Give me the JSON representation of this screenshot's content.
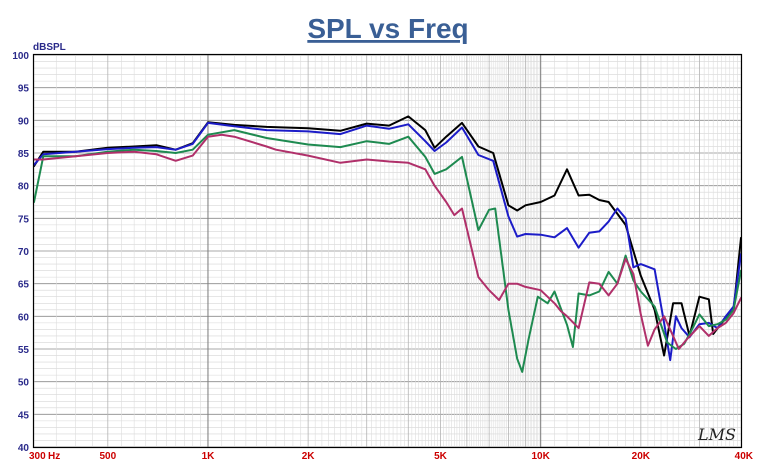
{
  "title": "SPL vs Freq",
  "y_unit_label": "dBSPL",
  "x_unit_label": "Hz",
  "logo_text": "LMS",
  "chart_data": {
    "type": "line",
    "title": "SPL vs Freq",
    "ylabel": "dBSPL",
    "xscale": "log",
    "xlim": [
      300,
      40000
    ],
    "ylim": [
      40,
      100
    ],
    "grid": true,
    "x_tick_labels": [
      {
        "value": 300,
        "label": "300"
      },
      {
        "value": 500,
        "label": "500"
      },
      {
        "value": 1000,
        "label": "1K"
      },
      {
        "value": 2000,
        "label": "2K"
      },
      {
        "value": 5000,
        "label": "5K"
      },
      {
        "value": 10000,
        "label": "10K"
      },
      {
        "value": 20000,
        "label": "20K"
      },
      {
        "value": 40000,
        "label": "40K"
      }
    ],
    "y_ticks": [
      40,
      45,
      50,
      55,
      60,
      65,
      70,
      75,
      80,
      85,
      90,
      95,
      100
    ],
    "series": [
      {
        "color": "#000000",
        "points": [
          [
            300,
            83
          ],
          [
            320,
            85.2
          ],
          [
            400,
            85.2
          ],
          [
            500,
            85.8
          ],
          [
            600,
            86
          ],
          [
            700,
            86.2
          ],
          [
            800,
            85.5
          ],
          [
            900,
            86.5
          ],
          [
            1000,
            89.7
          ],
          [
            1200,
            89.3
          ],
          [
            1500,
            89
          ],
          [
            2000,
            88.8
          ],
          [
            2500,
            88.4
          ],
          [
            3000,
            89.5
          ],
          [
            3500,
            89.2
          ],
          [
            4000,
            90.6
          ],
          [
            4500,
            88.5
          ],
          [
            4800,
            85.8
          ],
          [
            5200,
            87.5
          ],
          [
            5800,
            89.6
          ],
          [
            6500,
            86
          ],
          [
            7200,
            85
          ],
          [
            8000,
            77
          ],
          [
            8500,
            76.2
          ],
          [
            9000,
            77
          ],
          [
            10000,
            77.5
          ],
          [
            11000,
            78.5
          ],
          [
            12000,
            82.5
          ],
          [
            13000,
            78.5
          ],
          [
            14000,
            78.6
          ],
          [
            15000,
            77.8
          ],
          [
            16000,
            77.5
          ],
          [
            18000,
            74
          ],
          [
            20000,
            66.2
          ],
          [
            22000,
            61
          ],
          [
            23500,
            54
          ],
          [
            25000,
            62
          ],
          [
            26500,
            62
          ],
          [
            28000,
            57
          ],
          [
            30000,
            63
          ],
          [
            32000,
            62.6
          ],
          [
            33000,
            57.3
          ],
          [
            35000,
            59
          ],
          [
            38000,
            61
          ],
          [
            40000,
            72
          ]
        ]
      },
      {
        "color": "#1c1cc8",
        "points": [
          [
            300,
            83.2
          ],
          [
            320,
            84.8
          ],
          [
            400,
            85.2
          ],
          [
            500,
            85.6
          ],
          [
            600,
            85.8
          ],
          [
            700,
            85.9
          ],
          [
            800,
            85.5
          ],
          [
            900,
            86.4
          ],
          [
            1000,
            89.6
          ],
          [
            1200,
            89.1
          ],
          [
            1500,
            88.5
          ],
          [
            2000,
            88.3
          ],
          [
            2500,
            87.9
          ],
          [
            3000,
            89.2
          ],
          [
            3500,
            88.7
          ],
          [
            4000,
            89.4
          ],
          [
            4500,
            86.8
          ],
          [
            4800,
            85.3
          ],
          [
            5200,
            86.6
          ],
          [
            5800,
            88.9
          ],
          [
            6500,
            84.7
          ],
          [
            7200,
            83.8
          ],
          [
            8000,
            75.3
          ],
          [
            8500,
            72.2
          ],
          [
            9000,
            72.6
          ],
          [
            10000,
            72.5
          ],
          [
            11000,
            72.1
          ],
          [
            12000,
            73.5
          ],
          [
            13000,
            70.5
          ],
          [
            14000,
            72.8
          ],
          [
            15000,
            73
          ],
          [
            16000,
            74.5
          ],
          [
            17000,
            76.5
          ],
          [
            18000,
            75
          ],
          [
            19000,
            67.5
          ],
          [
            20000,
            68
          ],
          [
            22000,
            67.2
          ],
          [
            23500,
            59
          ],
          [
            24500,
            53.3
          ],
          [
            25500,
            60
          ],
          [
            26500,
            58.2
          ],
          [
            28000,
            56.8
          ],
          [
            30000,
            58.8
          ],
          [
            32000,
            59
          ],
          [
            34000,
            58.2
          ],
          [
            36000,
            60
          ],
          [
            38000,
            61.5
          ],
          [
            40000,
            69.5
          ]
        ]
      },
      {
        "color": "#1e8a50",
        "points": [
          [
            300,
            77.5
          ],
          [
            320,
            84.5
          ],
          [
            400,
            84.5
          ],
          [
            500,
            85.2
          ],
          [
            600,
            85.5
          ],
          [
            700,
            85.3
          ],
          [
            800,
            85
          ],
          [
            900,
            85.5
          ],
          [
            1000,
            87.8
          ],
          [
            1200,
            88.5
          ],
          [
            1500,
            87.3
          ],
          [
            2000,
            86.3
          ],
          [
            2500,
            85.9
          ],
          [
            3000,
            86.8
          ],
          [
            3500,
            86.4
          ],
          [
            4000,
            87.5
          ],
          [
            4500,
            84.4
          ],
          [
            4800,
            81.8
          ],
          [
            5200,
            82.5
          ],
          [
            5800,
            84.4
          ],
          [
            6500,
            73.2
          ],
          [
            7000,
            76.3
          ],
          [
            7300,
            76.5
          ],
          [
            8000,
            61
          ],
          [
            8500,
            53.5
          ],
          [
            8800,
            51.5
          ],
          [
            9200,
            56.5
          ],
          [
            9800,
            63
          ],
          [
            10500,
            62
          ],
          [
            11000,
            63.8
          ],
          [
            12000,
            58.7
          ],
          [
            12500,
            55.3
          ],
          [
            13000,
            63.5
          ],
          [
            14000,
            63.2
          ],
          [
            15000,
            63.8
          ],
          [
            16000,
            66.8
          ],
          [
            17000,
            65
          ],
          [
            18000,
            69.3
          ],
          [
            19000,
            65.5
          ],
          [
            20000,
            63.8
          ],
          [
            22000,
            61.5
          ],
          [
            24000,
            56
          ],
          [
            25500,
            55
          ],
          [
            27000,
            55.8
          ],
          [
            28500,
            58
          ],
          [
            30000,
            60.3
          ],
          [
            32000,
            58.5
          ],
          [
            34000,
            58.8
          ],
          [
            36000,
            59.5
          ],
          [
            38000,
            61
          ],
          [
            40000,
            67
          ]
        ]
      },
      {
        "color": "#b0306a",
        "points": [
          [
            300,
            84
          ],
          [
            320,
            84
          ],
          [
            400,
            84.5
          ],
          [
            500,
            85
          ],
          [
            600,
            85.2
          ],
          [
            700,
            84.8
          ],
          [
            800,
            83.8
          ],
          [
            900,
            84.6
          ],
          [
            1000,
            87.5
          ],
          [
            1100,
            87.8
          ],
          [
            1200,
            87.5
          ],
          [
            1500,
            86
          ],
          [
            1600,
            85.5
          ],
          [
            2000,
            84.6
          ],
          [
            2500,
            83.5
          ],
          [
            3000,
            84
          ],
          [
            3500,
            83.7
          ],
          [
            4000,
            83.5
          ],
          [
            4500,
            82.5
          ],
          [
            4800,
            80
          ],
          [
            5200,
            77.5
          ],
          [
            5500,
            75.5
          ],
          [
            5800,
            76.5
          ],
          [
            6500,
            66
          ],
          [
            7000,
            64
          ],
          [
            7500,
            62.5
          ],
          [
            8000,
            65
          ],
          [
            8500,
            65
          ],
          [
            9000,
            64.5
          ],
          [
            10000,
            64
          ],
          [
            11000,
            62
          ],
          [
            11500,
            60.8
          ],
          [
            12000,
            60
          ],
          [
            13000,
            58.2
          ],
          [
            14000,
            65.2
          ],
          [
            15000,
            65
          ],
          [
            16000,
            63.2
          ],
          [
            17000,
            65
          ],
          [
            18000,
            68.8
          ],
          [
            19000,
            66.5
          ],
          [
            20000,
            60.3
          ],
          [
            21000,
            55.5
          ],
          [
            22000,
            58
          ],
          [
            23500,
            60
          ],
          [
            25000,
            57
          ],
          [
            26000,
            55
          ],
          [
            27500,
            56.5
          ],
          [
            30000,
            58.5
          ],
          [
            32000,
            57
          ],
          [
            34000,
            58.2
          ],
          [
            36000,
            59
          ],
          [
            38000,
            60.5
          ],
          [
            40000,
            62.8
          ]
        ]
      }
    ]
  }
}
